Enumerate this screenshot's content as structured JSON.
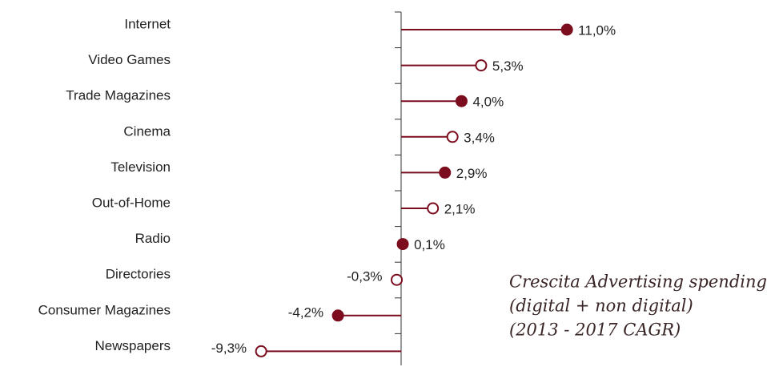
{
  "chart_data": {
    "type": "lollipop",
    "categories": [
      "Internet",
      "Video Games",
      "Trade Magazines",
      "Cinema",
      "Television",
      "Out-of-Home",
      "Radio",
      "Directories",
      "Consumer Magazines",
      "Newspapers"
    ],
    "values": [
      11.0,
      5.3,
      4.0,
      3.4,
      2.9,
      2.1,
      0.1,
      -0.3,
      -4.2,
      -9.3
    ],
    "value_labels": [
      "11,0%",
      "5,3%",
      "4,0%",
      "3,4%",
      "2,9%",
      "2,1%",
      "0,1%",
      "-0,3%",
      "-4,2%",
      "-9,3%"
    ],
    "filled": [
      true,
      false,
      true,
      false,
      true,
      false,
      true,
      false,
      true,
      false
    ],
    "color": "#7b0d1e",
    "xlim": [
      -10,
      12
    ],
    "annotation": [
      "Crescita Advertising spending",
      "(digital + non digital)",
      "(2013 - 2017 CAGR)"
    ]
  }
}
